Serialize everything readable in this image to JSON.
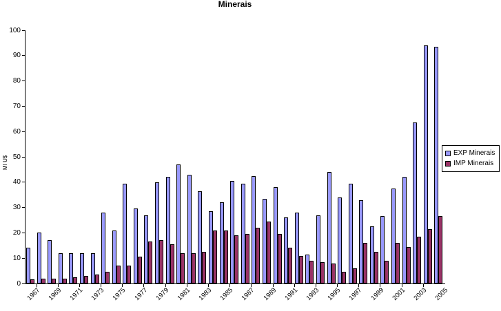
{
  "chart_data": {
    "type": "bar",
    "title": "Minerais",
    "ylabel": "MI U$",
    "xlabel": "",
    "ylim": [
      0,
      100
    ],
    "ytick_step": 10,
    "grid": false,
    "legend_position": "right",
    "background": "#FFFFFF",
    "axis_color": "#000000",
    "categories": [
      "1967",
      "1968",
      "1969",
      "1970",
      "1971",
      "1972",
      "1973",
      "1974",
      "1975",
      "1976",
      "1977",
      "1978",
      "1979",
      "1980",
      "1981",
      "1982",
      "1983",
      "1984",
      "1985",
      "1986",
      "1987",
      "1988",
      "1989",
      "1990",
      "1991",
      "1992",
      "1993",
      "1994",
      "1995",
      "1996",
      "1997",
      "1998",
      "1999",
      "2000",
      "2001",
      "2002",
      "2003",
      "2004",
      "2005"
    ],
    "x_tick_labels": [
      "1967",
      "1969",
      "1971",
      "1973",
      "1975",
      "1977",
      "1979",
      "1981",
      "1983",
      "1985",
      "1987",
      "1989",
      "1991",
      "1993",
      "1995",
      "1997",
      "1999",
      "2001",
      "2003",
      "2005"
    ],
    "y_tick_labels": [
      "0",
      "10",
      "20",
      "30",
      "40",
      "50",
      "60",
      "70",
      "80",
      "90",
      "100"
    ],
    "series": [
      {
        "name": "EXP Minerais",
        "color": "#9999FF",
        "values": [
          14,
          20,
          17,
          12,
          12,
          12,
          12,
          28,
          21,
          39.5,
          29.5,
          27,
          40,
          42,
          47,
          43,
          36.5,
          28.5,
          32,
          40.5,
          39.5,
          42.5,
          33.5,
          38,
          26,
          28,
          11.5,
          27,
          44,
          34,
          39.5,
          33,
          22.5,
          26.5,
          37.5,
          42,
          63.5,
          94,
          93.5
        ]
      },
      {
        "name": "IMP Minerais",
        "color": "#993366",
        "values": [
          1.5,
          2,
          2,
          2,
          2.5,
          3,
          3.5,
          4.5,
          7,
          7,
          10.5,
          16.5,
          17,
          15.5,
          12,
          12,
          12.5,
          21,
          21,
          19,
          19.5,
          22,
          24.5,
          19.5,
          14,
          11,
          9,
          8.5,
          8,
          4.5,
          6,
          16,
          12.5,
          9,
          16,
          14.5,
          18.5,
          21.5,
          26.5
        ]
      }
    ]
  }
}
